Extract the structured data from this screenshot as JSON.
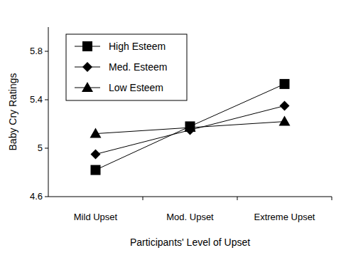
{
  "chart_data": {
    "type": "line",
    "x_label": "Participants' Level of Upset",
    "y_label": "Baby Cry Ratings",
    "categories": [
      "Mild Upset",
      "Mod. Upset",
      "Extreme Upset"
    ],
    "series": [
      {
        "name": "High Esteem",
        "color": "#000000",
        "marker": "square",
        "values": [
          4.82,
          5.18,
          5.53
        ]
      },
      {
        "name": "Med. Esteem",
        "color": "#000000",
        "marker": "diamond",
        "values": [
          4.95,
          5.15,
          5.35
        ]
      },
      {
        "name": "Low Esteem",
        "color": "#000000",
        "marker": "triangle",
        "values": [
          5.12,
          5.17,
          5.22
        ]
      }
    ],
    "ylim": [
      4.6,
      6.0
    ],
    "yticks": [
      4.6,
      5,
      5.4,
      5.8
    ],
    "grid": false,
    "legend": "upper left"
  }
}
